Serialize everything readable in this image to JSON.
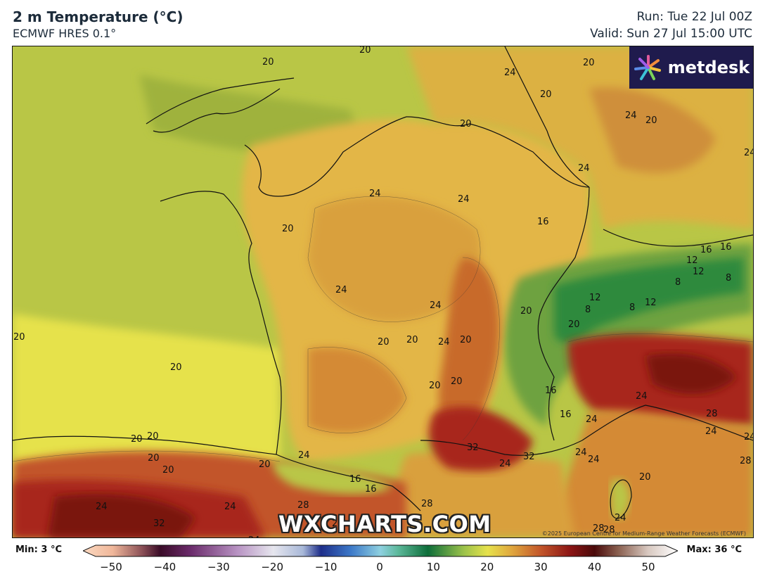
{
  "header": {
    "title": "2 m Temperature (°C)",
    "model": "ECMWF HRES 0.1°",
    "run": "Run: Tue 22 Jul 00Z",
    "valid": "Valid: Sun 27 Jul 15:00 UTC"
  },
  "branding": {
    "logo_text": "metdesk",
    "watermark": "WXCHARTS.COM",
    "copyright": "©2025 European Centre for Medium-Range Weather Forecasts (ECMWF)"
  },
  "map": {
    "contour_labels": [
      "20",
      "20",
      "24",
      "20",
      "20",
      "20",
      "24",
      "24",
      "20",
      "20",
      "20",
      "24",
      "24",
      "20",
      "24",
      "24",
      "24",
      "20",
      "16",
      "16",
      "16",
      "12",
      "12",
      "8",
      "8",
      "12",
      "8",
      "8",
      "12",
      "20",
      "20",
      "20",
      "20",
      "24",
      "20",
      "20",
      "20",
      "20",
      "16",
      "16",
      "24",
      "24",
      "28",
      "32",
      "32",
      "24",
      "24",
      "24",
      "24",
      "28",
      "24",
      "28",
      "28",
      "20",
      "20",
      "20",
      "20",
      "24",
      "16",
      "16",
      "28",
      "28",
      "24",
      "32",
      "24",
      "20",
      "24",
      "24"
    ],
    "colors": {
      "sea_cool": "#b9c646",
      "sea_warm": "#e6e24c",
      "land_mid": "#e3b646",
      "land_warm": "#d48a34",
      "hot": "#a8251a",
      "very_hot": "#7a1410",
      "alpine": "#2f8a3d"
    }
  },
  "colorbar": {
    "min_label": "Min: 3 °C",
    "max_label": "Max: 36 °C",
    "ticks": [
      "−50",
      "−40",
      "−30",
      "−20",
      "−10",
      "0",
      "10",
      "20",
      "30",
      "40",
      "50"
    ]
  }
}
